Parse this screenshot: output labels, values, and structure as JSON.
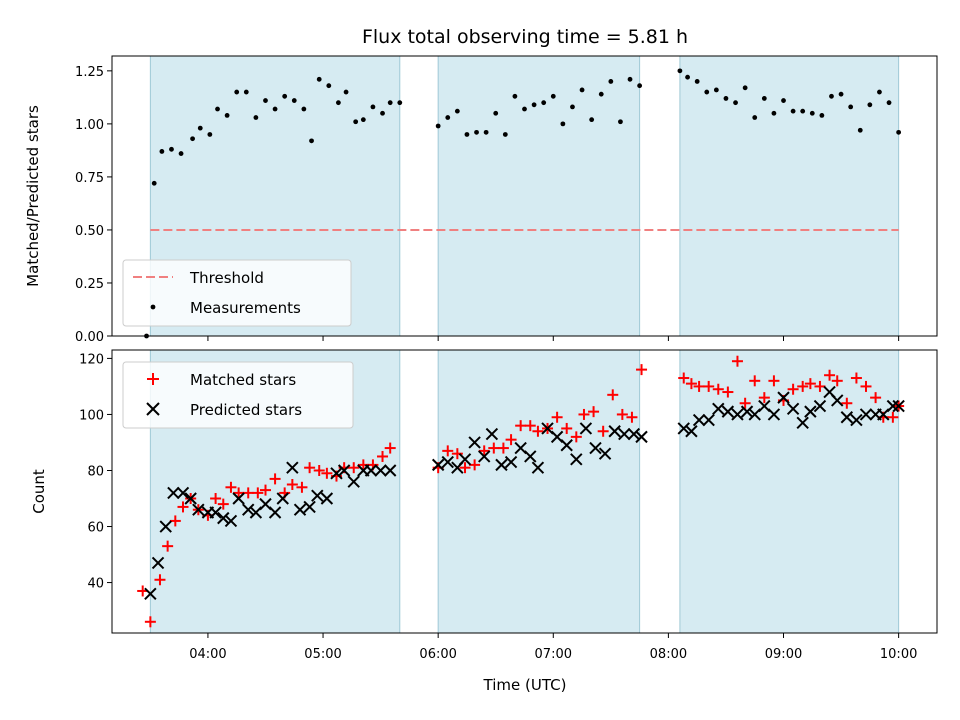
{
  "title": "Flux total observing time = 5.81 h",
  "chart_data": [
    {
      "type": "scatter",
      "panel": "top",
      "title": "Flux total observing time = 5.81 h",
      "xlabel": "",
      "ylabel": "Matched/Predicted stars",
      "xlim": [
        "03:10",
        "10:20"
      ],
      "ylim": [
        0,
        1.32
      ],
      "yticks": [
        "0.00",
        "0.25",
        "0.50",
        "0.75",
        "1.00",
        "1.25"
      ],
      "shaded_intervals": [
        [
          "03:30",
          "05:40"
        ],
        [
          "06:00",
          "07:45"
        ],
        [
          "08:06",
          "10:00"
        ]
      ],
      "threshold": {
        "name": "Threshold",
        "value": 0.5,
        "x_from": "03:30",
        "x_to": "10:00",
        "color": "#f08080"
      },
      "series": [
        {
          "name": "Measurements",
          "color": "#000000",
          "x": [
            "03:28",
            "03:32",
            "03:36",
            "03:41",
            "03:46",
            "03:52",
            "03:56",
            "04:01",
            "04:05",
            "04:10",
            "04:15",
            "04:20",
            "04:25",
            "04:30",
            "04:35",
            "04:40",
            "04:45",
            "04:50",
            "04:54",
            "04:58",
            "05:03",
            "05:08",
            "05:12",
            "05:17",
            "05:21",
            "05:26",
            "05:31",
            "05:35",
            "05:40",
            "06:00",
            "06:05",
            "06:10",
            "06:15",
            "06:20",
            "06:25",
            "06:30",
            "06:35",
            "06:40",
            "06:45",
            "06:50",
            "06:55",
            "07:00",
            "07:05",
            "07:10",
            "07:15",
            "07:20",
            "07:25",
            "07:30",
            "07:35",
            "07:40",
            "07:45",
            "08:06",
            "08:10",
            "08:15",
            "08:20",
            "08:25",
            "08:30",
            "08:35",
            "08:40",
            "08:45",
            "08:50",
            "08:55",
            "09:00",
            "09:05",
            "09:10",
            "09:15",
            "09:20",
            "09:25",
            "09:30",
            "09:35",
            "09:40",
            "09:45",
            "09:50",
            "09:55",
            "10:00"
          ],
          "y": [
            0.0,
            0.72,
            0.87,
            0.88,
            0.86,
            0.93,
            0.98,
            0.95,
            1.07,
            1.04,
            1.15,
            1.15,
            1.03,
            1.11,
            1.07,
            1.13,
            1.11,
            1.07,
            0.92,
            1.21,
            1.18,
            1.1,
            1.15,
            1.01,
            1.02,
            1.08,
            1.05,
            1.1,
            1.1,
            0.99,
            1.03,
            1.06,
            0.95,
            0.96,
            0.96,
            1.05,
            0.95,
            1.13,
            1.07,
            1.09,
            1.1,
            1.13,
            1.0,
            1.08,
            1.16,
            1.02,
            1.14,
            1.2,
            1.01,
            1.21,
            1.18,
            1.25,
            1.22,
            1.2,
            1.15,
            1.16,
            1.12,
            1.1,
            1.17,
            1.03,
            1.12,
            1.05,
            1.11,
            1.06,
            1.06,
            1.05,
            1.04,
            1.13,
            1.14,
            1.08,
            0.97,
            1.09,
            1.15,
            1.1,
            0.96
          ]
        }
      ],
      "legend": {
        "location": "lower left",
        "entries": [
          "Threshold",
          "Measurements"
        ]
      }
    },
    {
      "type": "scatter",
      "panel": "bottom",
      "xlabel": "Time (UTC)",
      "ylabel": "Count",
      "xlim": [
        "03:10",
        "10:20"
      ],
      "ylim": [
        22,
        123
      ],
      "yticks": [
        "40",
        "60",
        "80",
        "100",
        "120"
      ],
      "xticks": [
        "04:00",
        "05:00",
        "06:00",
        "07:00",
        "08:00",
        "09:00",
        "10:00"
      ],
      "shaded_intervals": [
        [
          "03:30",
          "05:40"
        ],
        [
          "06:00",
          "07:45"
        ],
        [
          "08:06",
          "10:00"
        ]
      ],
      "series": [
        {
          "name": "Matched stars",
          "marker": "plus",
          "color": "#ff0000",
          "x": [
            "03:26",
            "03:30",
            "03:35",
            "03:39",
            "03:43",
            "03:47",
            "03:51",
            "03:55",
            "04:00",
            "04:04",
            "04:08",
            "04:12",
            "04:16",
            "04:21",
            "04:26",
            "04:30",
            "04:35",
            "04:40",
            "04:44",
            "04:49",
            "04:53",
            "04:58",
            "05:02",
            "05:07",
            "05:11",
            "05:16",
            "05:21",
            "05:26",
            "05:31",
            "05:35",
            "06:00",
            "06:05",
            "06:10",
            "06:14",
            "06:19",
            "06:24",
            "06:29",
            "06:34",
            "06:38",
            "06:43",
            "06:48",
            "06:52",
            "06:57",
            "07:02",
            "07:07",
            "07:12",
            "07:16",
            "07:21",
            "07:26",
            "07:31",
            "07:36",
            "07:41",
            "07:46",
            "08:08",
            "08:12",
            "08:16",
            "08:21",
            "08:26",
            "08:31",
            "08:36",
            "08:40",
            "08:45",
            "08:50",
            "08:55",
            "09:00",
            "09:05",
            "09:10",
            "09:14",
            "09:19",
            "09:24",
            "09:28",
            "09:33",
            "09:38",
            "09:43",
            "09:48",
            "09:52",
            "09:57",
            "10:00"
          ],
          "y": [
            37,
            26,
            41,
            53,
            62,
            67,
            70,
            66,
            64,
            70,
            68,
            74,
            72,
            72,
            72,
            73,
            77,
            72,
            75,
            74,
            81,
            80,
            79,
            78,
            81,
            81,
            82,
            82,
            85,
            88,
            81,
            87,
            86,
            81,
            82,
            87,
            88,
            88,
            91,
            96,
            96,
            94,
            95,
            99,
            95,
            92,
            100,
            101,
            94,
            107,
            100,
            99,
            116,
            113,
            111,
            110,
            110,
            109,
            108,
            119,
            104,
            112,
            106,
            112,
            105,
            109,
            110,
            111,
            110,
            114,
            112,
            104,
            113,
            110,
            106,
            99,
            99,
            103
          ]
        },
        {
          "name": "Predicted stars",
          "marker": "x",
          "color": "#000000",
          "x": [
            "03:30",
            "03:34",
            "03:38",
            "03:42",
            "03:47",
            "03:51",
            "03:55",
            "04:00",
            "04:04",
            "04:08",
            "04:12",
            "04:16",
            "04:21",
            "04:25",
            "04:30",
            "04:35",
            "04:39",
            "04:44",
            "04:48",
            "04:53",
            "04:57",
            "05:02",
            "05:07",
            "05:11",
            "05:16",
            "05:21",
            "05:25",
            "05:30",
            "05:35",
            "06:00",
            "06:05",
            "06:10",
            "06:14",
            "06:19",
            "06:24",
            "06:28",
            "06:33",
            "06:38",
            "06:43",
            "06:48",
            "06:52",
            "06:57",
            "07:02",
            "07:07",
            "07:12",
            "07:17",
            "07:22",
            "07:27",
            "07:32",
            "07:37",
            "07:42",
            "07:46",
            "08:08",
            "08:12",
            "08:16",
            "08:21",
            "08:26",
            "08:31",
            "08:36",
            "08:41",
            "08:45",
            "08:50",
            "08:55",
            "09:00",
            "09:05",
            "09:10",
            "09:14",
            "09:19",
            "09:24",
            "09:28",
            "09:33",
            "09:38",
            "09:43",
            "09:48",
            "09:52",
            "09:57",
            "10:00"
          ],
          "y": [
            36,
            47,
            60,
            72,
            72,
            70,
            66,
            65,
            65,
            63,
            62,
            70,
            66,
            65,
            68,
            65,
            70,
            81,
            66,
            67,
            71,
            70,
            79,
            80,
            76,
            80,
            80,
            80,
            80,
            82,
            83,
            81,
            84,
            90,
            85,
            93,
            82,
            83,
            88,
            85,
            81,
            95,
            92,
            89,
            84,
            95,
            88,
            86,
            94,
            93,
            93,
            92,
            95,
            94,
            98,
            98,
            102,
            101,
            100,
            101,
            100,
            103,
            100,
            106,
            102,
            97,
            101,
            103,
            108,
            105,
            99,
            98,
            100,
            100,
            100,
            103,
            103
          ]
        }
      ],
      "legend": {
        "location": "upper left",
        "entries": [
          "Matched stars",
          "Predicted stars"
        ]
      }
    }
  ]
}
